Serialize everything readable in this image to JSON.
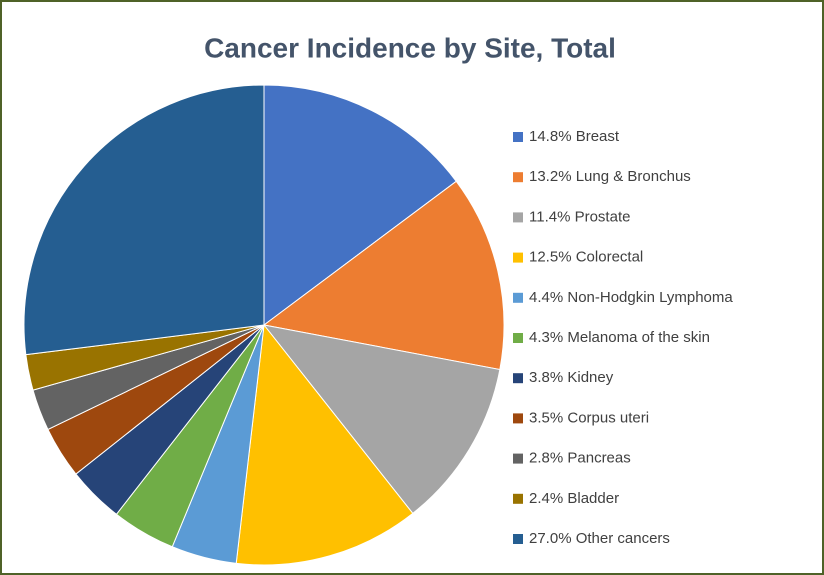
{
  "chart_data": {
    "type": "pie",
    "title": "Cancer Incidence by Site, Total",
    "categories": [
      "Breast",
      "Lung & Bronchus",
      "Prostate",
      "Colorectal",
      "Non-Hodgkin Lymphoma",
      "Melanoma of the skin",
      "Kidney",
      "Corpus uteri",
      "Pancreas",
      "Bladder",
      "Other cancers"
    ],
    "values": [
      14.8,
      13.2,
      11.4,
      12.5,
      4.4,
      4.3,
      3.8,
      3.5,
      2.8,
      2.4,
      27.0
    ],
    "value_labels": [
      "14.8%",
      "13.2%",
      "11.4%",
      "12.5%",
      "4.4%",
      "4.3%",
      "3.8%",
      "3.5%",
      "2.8%",
      "2.4%",
      "27.0%"
    ],
    "colors": [
      "#4472c4",
      "#ed7d31",
      "#a5a5a5",
      "#ffc000",
      "#5b9bd5",
      "#70ad47",
      "#264478",
      "#9e480e",
      "#636363",
      "#997300",
      "#255e91"
    ],
    "legend": "right"
  }
}
